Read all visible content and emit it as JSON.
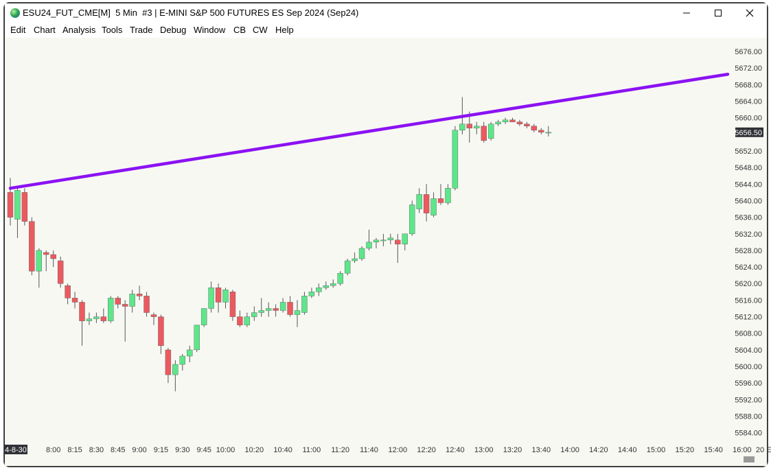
{
  "window": {
    "title": "ESU24_FUT_CME[M]  5 Min  #3 | E-MINI S&P 500 FUTURES ES Sep 2024 (Sep24)",
    "controls": [
      "minimize-icon",
      "maximize-icon",
      "close-icon"
    ]
  },
  "menu": [
    "Edit",
    "Chart",
    "Analysis",
    "Tools",
    "Trade",
    "Debug",
    "Window",
    "CB",
    "CW",
    "Help"
  ],
  "colors": {
    "up": "#5ee68a",
    "down": "#eb5a5f",
    "trendline": "#8b12f2",
    "background": "#f8f8f3",
    "price_badge": "#2f3136"
  },
  "chart_data": {
    "type": "candlestick",
    "symbol": "ESU24_FUT_CME",
    "interval": "5 Min",
    "current_price": "5656.50",
    "y_ticks": [
      "5676.00",
      "5672.00",
      "5668.00",
      "5664.00",
      "5660.00",
      "5652.00",
      "5648.00",
      "5644.00",
      "5640.00",
      "5636.00",
      "5632.00",
      "5628.00",
      "5624.00",
      "5620.00",
      "5616.00",
      "5612.00",
      "5608.00",
      "5604.00",
      "5600.00",
      "5596.00",
      "5592.00",
      "5588.00",
      "5584.00"
    ],
    "y_tick_values": [
      5676,
      5672,
      5668,
      5664,
      5660,
      5652,
      5648,
      5644,
      5640,
      5636,
      5632,
      5628,
      5624,
      5620,
      5616,
      5612,
      5608,
      5604,
      5600,
      5596,
      5592,
      5588,
      5584
    ],
    "x_labels": [
      {
        "label": "4-8-30",
        "bar": 0
      },
      {
        "label": "8:00",
        "bar": 6
      },
      {
        "label": "8:15",
        "bar": 9
      },
      {
        "label": "8:30",
        "bar": 12
      },
      {
        "label": "8:45",
        "bar": 15
      },
      {
        "label": "9:00",
        "bar": 18
      },
      {
        "label": "9:15",
        "bar": 21
      },
      {
        "label": "9:30",
        "bar": 24
      },
      {
        "label": "9:45",
        "bar": 27
      },
      {
        "label": "10:00",
        "bar": 30
      },
      {
        "label": "10:20",
        "bar": 34
      },
      {
        "label": "10:40",
        "bar": 38
      },
      {
        "label": "11:00",
        "bar": 42
      },
      {
        "label": "11:20",
        "bar": 46
      },
      {
        "label": "11:40",
        "bar": 50
      },
      {
        "label": "12:00",
        "bar": 54
      },
      {
        "label": "12:20",
        "bar": 58
      },
      {
        "label": "12:40",
        "bar": 62
      },
      {
        "label": "13:00",
        "bar": 66
      },
      {
        "label": "13:20",
        "bar": 70
      },
      {
        "label": "13:40",
        "bar": 74
      },
      {
        "label": "14:00",
        "bar": 78
      },
      {
        "label": "14:20",
        "bar": 82
      },
      {
        "label": "14:40",
        "bar": 86
      },
      {
        "label": "15:00",
        "bar": 90
      },
      {
        "label": "15:20",
        "bar": 94
      },
      {
        "label": "15:40",
        "bar": 98
      },
      {
        "label": "16:00",
        "bar": 102
      },
      {
        "label": "20 E",
        "bar": 105
      }
    ],
    "candles": [
      {
        "o": 5642,
        "h": 5645.5,
        "l": 5634,
        "c": 5636
      },
      {
        "o": 5635.5,
        "h": 5643,
        "l": 5631,
        "c": 5642.5
      },
      {
        "o": 5642,
        "h": 5643,
        "l": 5634,
        "c": 5635
      },
      {
        "o": 5635,
        "h": 5636,
        "l": 5622,
        "c": 5623
      },
      {
        "o": 5623,
        "h": 5628.5,
        "l": 5619,
        "c": 5628
      },
      {
        "o": 5627.5,
        "h": 5628,
        "l": 5623,
        "c": 5627
      },
      {
        "o": 5627,
        "h": 5628,
        "l": 5624,
        "c": 5626
      },
      {
        "o": 5625.5,
        "h": 5626.5,
        "l": 5619,
        "c": 5620
      },
      {
        "o": 5619.5,
        "h": 5620,
        "l": 5615,
        "c": 5616.5
      },
      {
        "o": 5616.5,
        "h": 5618,
        "l": 5614,
        "c": 5615.5
      },
      {
        "o": 5615.5,
        "h": 5616,
        "l": 5605,
        "c": 5611
      },
      {
        "o": 5611,
        "h": 5613,
        "l": 5610,
        "c": 5611.5
      },
      {
        "o": 5611.5,
        "h": 5613,
        "l": 5610.5,
        "c": 5612
      },
      {
        "o": 5612,
        "h": 5614,
        "l": 5610.5,
        "c": 5611
      },
      {
        "o": 5611,
        "h": 5617,
        "l": 5610.5,
        "c": 5616.5
      },
      {
        "o": 5616.5,
        "h": 5617,
        "l": 5614,
        "c": 5615
      },
      {
        "o": 5615,
        "h": 5616,
        "l": 5606,
        "c": 5614.5
      },
      {
        "o": 5614.5,
        "h": 5618.5,
        "l": 5613,
        "c": 5617.5
      },
      {
        "o": 5617.5,
        "h": 5619.5,
        "l": 5616,
        "c": 5617
      },
      {
        "o": 5617,
        "h": 5618,
        "l": 5612,
        "c": 5613
      },
      {
        "o": 5612.5,
        "h": 5613,
        "l": 5610,
        "c": 5612
      },
      {
        "o": 5612,
        "h": 5612.5,
        "l": 5603,
        "c": 5605
      },
      {
        "o": 5604,
        "h": 5604.5,
        "l": 5596,
        "c": 5598
      },
      {
        "o": 5598,
        "h": 5601.5,
        "l": 5594,
        "c": 5600.5
      },
      {
        "o": 5600.5,
        "h": 5603,
        "l": 5599,
        "c": 5602.5
      },
      {
        "o": 5602.5,
        "h": 5605,
        "l": 5601,
        "c": 5604
      },
      {
        "o": 5604,
        "h": 5610,
        "l": 5603.5,
        "c": 5610
      },
      {
        "o": 5610,
        "h": 5614,
        "l": 5609.5,
        "c": 5614
      },
      {
        "o": 5614,
        "h": 5620.5,
        "l": 5613,
        "c": 5619
      },
      {
        "o": 5619,
        "h": 5620,
        "l": 5613,
        "c": 5615.5
      },
      {
        "o": 5615.5,
        "h": 5619,
        "l": 5614,
        "c": 5618.5
      },
      {
        "o": 5618,
        "h": 5618.5,
        "l": 5611,
        "c": 5612
      },
      {
        "o": 5612,
        "h": 5613.5,
        "l": 5609.5,
        "c": 5610
      },
      {
        "o": 5610,
        "h": 5613,
        "l": 5609.5,
        "c": 5612
      },
      {
        "o": 5612,
        "h": 5614.5,
        "l": 5611,
        "c": 5613
      },
      {
        "o": 5613,
        "h": 5616.5,
        "l": 5612,
        "c": 5613.5
      },
      {
        "o": 5613.5,
        "h": 5615.5,
        "l": 5612,
        "c": 5614
      },
      {
        "o": 5614,
        "h": 5615,
        "l": 5612,
        "c": 5613.5
      },
      {
        "o": 5613.5,
        "h": 5616.5,
        "l": 5613,
        "c": 5615.5
      },
      {
        "o": 5615.5,
        "h": 5617,
        "l": 5612,
        "c": 5612.5
      },
      {
        "o": 5612.5,
        "h": 5616,
        "l": 5609.5,
        "c": 5613.5
      },
      {
        "o": 5613,
        "h": 5618,
        "l": 5612.5,
        "c": 5617
      },
      {
        "o": 5617,
        "h": 5619,
        "l": 5616.5,
        "c": 5618
      },
      {
        "o": 5618,
        "h": 5620,
        "l": 5617,
        "c": 5619
      },
      {
        "o": 5619,
        "h": 5620.5,
        "l": 5618.5,
        "c": 5619.5
      },
      {
        "o": 5619.5,
        "h": 5621,
        "l": 5619,
        "c": 5620
      },
      {
        "o": 5620,
        "h": 5623,
        "l": 5619.5,
        "c": 5622.5
      },
      {
        "o": 5622.5,
        "h": 5626,
        "l": 5622,
        "c": 5625.5
      },
      {
        "o": 5625.5,
        "h": 5627.5,
        "l": 5625,
        "c": 5626
      },
      {
        "o": 5626,
        "h": 5629,
        "l": 5625.5,
        "c": 5628.5
      },
      {
        "o": 5628.5,
        "h": 5633,
        "l": 5628,
        "c": 5630
      },
      {
        "o": 5630,
        "h": 5631,
        "l": 5628.5,
        "c": 5630.5
      },
      {
        "o": 5630.5,
        "h": 5632,
        "l": 5629,
        "c": 5630.5
      },
      {
        "o": 5630.5,
        "h": 5632,
        "l": 5629.5,
        "c": 5631
      },
      {
        "o": 5630.5,
        "h": 5632,
        "l": 5625,
        "c": 5629.5
      },
      {
        "o": 5629.5,
        "h": 5632,
        "l": 5628,
        "c": 5632
      },
      {
        "o": 5632,
        "h": 5640,
        "l": 5631.5,
        "c": 5639
      },
      {
        "o": 5638,
        "h": 5643,
        "l": 5637,
        "c": 5641.5
      },
      {
        "o": 5641.5,
        "h": 5644,
        "l": 5635,
        "c": 5637
      },
      {
        "o": 5636.5,
        "h": 5642,
        "l": 5636,
        "c": 5640.5
      },
      {
        "o": 5640.5,
        "h": 5644,
        "l": 5639,
        "c": 5639.5
      },
      {
        "o": 5639.5,
        "h": 5644,
        "l": 5639,
        "c": 5643
      },
      {
        "o": 5643,
        "h": 5658,
        "l": 5642.5,
        "c": 5657
      },
      {
        "o": 5657,
        "h": 5665,
        "l": 5656,
        "c": 5658.5
      },
      {
        "o": 5658.5,
        "h": 5661.5,
        "l": 5654,
        "c": 5657.5
      },
      {
        "o": 5657.5,
        "h": 5659,
        "l": 5656,
        "c": 5658
      },
      {
        "o": 5658,
        "h": 5659,
        "l": 5654,
        "c": 5654.5
      },
      {
        "o": 5655,
        "h": 5659,
        "l": 5654.5,
        "c": 5658.5
      },
      {
        "o": 5658.5,
        "h": 5659.5,
        "l": 5658,
        "c": 5659
      },
      {
        "o": 5659,
        "h": 5660,
        "l": 5658.5,
        "c": 5659.5
      },
      {
        "o": 5659.5,
        "h": 5660,
        "l": 5659,
        "c": 5659
      },
      {
        "o": 5659,
        "h": 5659.5,
        "l": 5658,
        "c": 5658.5
      },
      {
        "o": 5658.5,
        "h": 5659,
        "l": 5657.5,
        "c": 5658
      },
      {
        "o": 5658,
        "h": 5658.5,
        "l": 5656.5,
        "c": 5657
      },
      {
        "o": 5657,
        "h": 5657.5,
        "l": 5656,
        "c": 5656.5
      },
      {
        "o": 5656.5,
        "h": 5658,
        "l": 5655.5,
        "c": 5656.5
      }
    ],
    "trendline": {
      "bar1": 0,
      "price1": 5643,
      "bar2": 100,
      "price2": 5670.5
    }
  }
}
